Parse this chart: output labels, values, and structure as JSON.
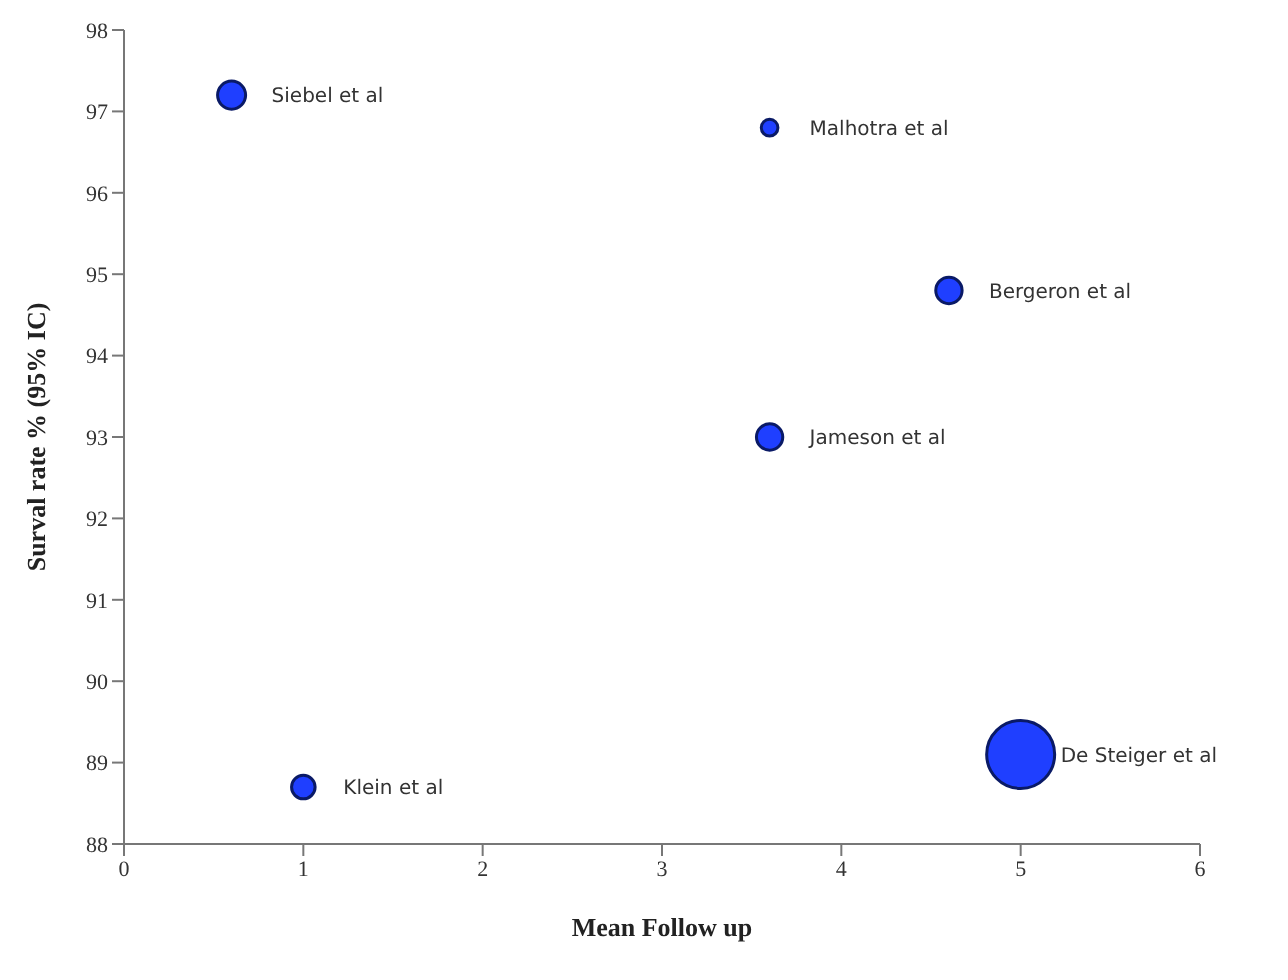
{
  "chart_data": {
    "type": "bubble",
    "xlabel": "Mean Follow up",
    "ylabel": "Surval rate % (95% IC)",
    "x": [
      0.6,
      3.6,
      4.6,
      3.6,
      1.0,
      5.0
    ],
    "series": [
      {
        "color": "#1f3fff",
        "values": [
          97.2,
          96.8,
          94.8,
          93.0,
          88.7,
          89.1
        ],
        "sizes": [
          0.17,
          0.06,
          0.15,
          0.15,
          0.12,
          1
        ]
      }
    ],
    "xlim": [
      0,
      6
    ],
    "xticks": [
      0,
      1,
      2,
      3,
      4,
      5,
      6
    ],
    "ylim": [
      88,
      98
    ],
    "yticks": [
      88,
      89,
      90,
      91,
      92,
      93,
      94,
      95,
      96,
      97,
      98
    ],
    "annotations": [
      {
        "text": "Siebel et al",
        "x": 0.6,
        "y": 97.2
      },
      {
        "text": "Malhotra et al",
        "x": 3.6,
        "y": 96.8
      },
      {
        "text": "Bergeron et al",
        "x": 4.6,
        "y": 94.8
      },
      {
        "text": "Jameson et al",
        "x": 3.6,
        "y": 93.0
      },
      {
        "text": "Klein et al",
        "x": 1.0,
        "y": 88.7
      },
      {
        "text": "De Steiger et al",
        "x": 5.0,
        "y": 89.1
      }
    ],
    "grid": false,
    "legend": false
  }
}
